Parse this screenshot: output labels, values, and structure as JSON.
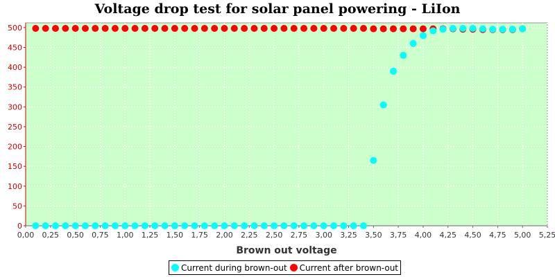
{
  "chart_data": {
    "type": "scatter",
    "title": "Voltage drop test for solar panel powering -  LiIon",
    "xlabel": "Brown out voltage",
    "ylabel": "",
    "xlim": [
      0,
      5.25
    ],
    "ylim": [
      0,
      512
    ],
    "xticks": [
      "0,00",
      "0,25",
      "0,50",
      "0,75",
      "1,00",
      "1,25",
      "1,50",
      "1,75",
      "2,00",
      "2,25",
      "2,50",
      "2,75",
      "3,00",
      "3,25",
      "3,50",
      "3,75",
      "4,00",
      "4,25",
      "4,50",
      "4,75",
      "5,00",
      "5,25"
    ],
    "yticks": [
      "0",
      "50",
      "100",
      "150",
      "200",
      "250",
      "300",
      "350",
      "400",
      "450",
      "500"
    ],
    "grid": true,
    "legend_position": "bottom",
    "plot_background": "#ccffcc",
    "series": [
      {
        "name": "Current during brown-out",
        "color": "#00ffff",
        "x": [
          0.1,
          0.2,
          0.3,
          0.4,
          0.5,
          0.6,
          0.7,
          0.8,
          0.9,
          1.0,
          1.1,
          1.2,
          1.3,
          1.4,
          1.5,
          1.6,
          1.7,
          1.8,
          1.9,
          2.0,
          2.1,
          2.2,
          2.3,
          2.4,
          2.5,
          2.6,
          2.7,
          2.8,
          2.9,
          3.0,
          3.1,
          3.2,
          3.3,
          3.4,
          3.5,
          3.6,
          3.7,
          3.8,
          3.9,
          4.0,
          4.1,
          4.2,
          4.3,
          4.4,
          4.5,
          4.6,
          4.7,
          4.8,
          4.9,
          5.0
        ],
        "y": [
          0,
          0,
          0,
          0,
          0,
          0,
          0,
          0,
          0,
          0,
          0,
          0,
          0,
          0,
          0,
          0,
          0,
          0,
          0,
          0,
          0,
          0,
          0,
          0,
          0,
          0,
          0,
          0,
          0,
          0,
          0,
          0,
          0,
          0,
          165,
          305,
          390,
          430,
          460,
          480,
          492,
          496,
          498,
          498,
          498,
          497,
          496,
          496,
          496,
          497
        ]
      },
      {
        "name": "Current after brown-out",
        "color": "#ff0000",
        "x": [
          0.1,
          0.2,
          0.3,
          0.4,
          0.5,
          0.6,
          0.7,
          0.8,
          0.9,
          1.0,
          1.1,
          1.2,
          1.3,
          1.4,
          1.5,
          1.6,
          1.7,
          1.8,
          1.9,
          2.0,
          2.1,
          2.2,
          2.3,
          2.4,
          2.5,
          2.6,
          2.7,
          2.8,
          2.9,
          3.0,
          3.1,
          3.2,
          3.3,
          3.4,
          3.5,
          3.6,
          3.7,
          3.8,
          3.9,
          4.0,
          4.1,
          4.2,
          4.3,
          4.4,
          4.5,
          4.6,
          4.7,
          4.8,
          4.9,
          5.0
        ],
        "y": [
          498,
          498,
          498,
          498,
          498,
          498,
          498,
          498,
          498,
          498,
          498,
          498,
          498,
          498,
          498,
          498,
          498,
          498,
          498,
          498,
          498,
          498,
          498,
          498,
          498,
          498,
          498,
          498,
          498,
          498,
          498,
          498,
          498,
          498,
          497,
          497,
          497,
          497,
          497,
          497,
          497,
          497,
          497,
          496,
          496,
          495,
          495,
          495,
          495,
          497
        ]
      }
    ]
  }
}
